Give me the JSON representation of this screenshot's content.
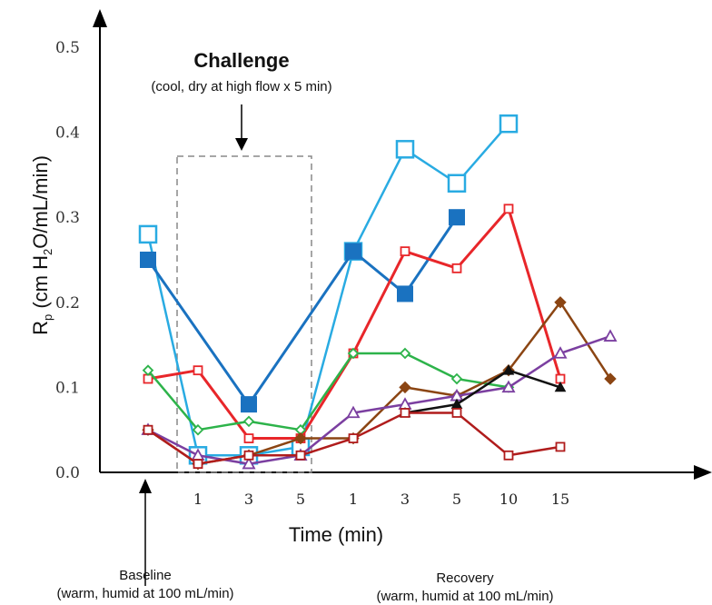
{
  "chart_data": {
    "type": "line",
    "title": "",
    "xlabel": "Time (min)",
    "ylabel": {
      "main": "R",
      "sub": "p",
      "units_pre": " (cm H",
      "units_sub": "2",
      "units_post": "O/mL/min)"
    },
    "ylim": [
      0,
      0.5
    ],
    "yticks": [
      "0.0",
      "0.1",
      "0.2",
      "0.3",
      "0.4",
      "0.5"
    ],
    "x_categories": [
      "",
      "1",
      "3",
      "5",
      "1",
      "3",
      "5",
      "10",
      "15",
      ""
    ],
    "annotations": {
      "challenge_title": "Challenge",
      "challenge_sub": "(cool, dry at high flow x 5 min)",
      "baseline_title": "Baseline",
      "baseline_sub": "(warm, humid at 100 mL/min)",
      "recovery_title": "Recovery",
      "recovery_sub": "(warm, humid at 100 mL/min)"
    },
    "series": [
      {
        "color": "#29abe2",
        "marker": "square-open",
        "size": 18,
        "width": 2.5,
        "values": [
          0.28,
          0.02,
          0.02,
          0.03,
          0.26,
          0.38,
          0.34,
          0.41,
          null,
          null
        ]
      },
      {
        "color": "#1a72c0",
        "marker": "square-filled",
        "size": 17,
        "width": 3,
        "values": [
          0.25,
          null,
          0.08,
          null,
          0.26,
          0.21,
          0.3,
          null,
          null,
          null
        ]
      },
      {
        "color": "#e8262a",
        "marker": "square-open",
        "size": 9,
        "width": 3,
        "values": [
          0.11,
          0.12,
          0.04,
          0.04,
          0.14,
          0.26,
          0.24,
          0.31,
          0.11,
          null
        ]
      },
      {
        "color": "#2db34a",
        "marker": "diamond-open",
        "size": 10,
        "width": 2.5,
        "values": [
          0.12,
          0.05,
          0.06,
          0.05,
          0.14,
          0.14,
          0.11,
          0.1,
          null,
          null
        ]
      },
      {
        "color": "#8b4513",
        "marker": "diamond-filled",
        "size": 12,
        "width": 2.5,
        "values": [
          0.05,
          0.01,
          0.02,
          0.04,
          0.04,
          0.1,
          0.09,
          0.12,
          0.2,
          0.11
        ]
      },
      {
        "color": "#7b3fa0",
        "marker": "triangle-open",
        "size": 12,
        "width": 2.5,
        "values": [
          0.05,
          0.02,
          0.01,
          0.02,
          0.07,
          0.08,
          0.09,
          0.1,
          0.14,
          0.16
        ]
      },
      {
        "color": "#111111",
        "marker": "triangle-filled",
        "size": 11,
        "width": 2.5,
        "values": [
          null,
          null,
          null,
          null,
          null,
          0.07,
          0.08,
          0.12,
          0.1,
          null
        ]
      },
      {
        "color": "#b01c1c",
        "marker": "square-open",
        "size": 9,
        "width": 2.5,
        "values": [
          0.05,
          0.01,
          0.02,
          0.02,
          0.04,
          0.07,
          0.07,
          0.02,
          0.03,
          null
        ]
      }
    ]
  }
}
